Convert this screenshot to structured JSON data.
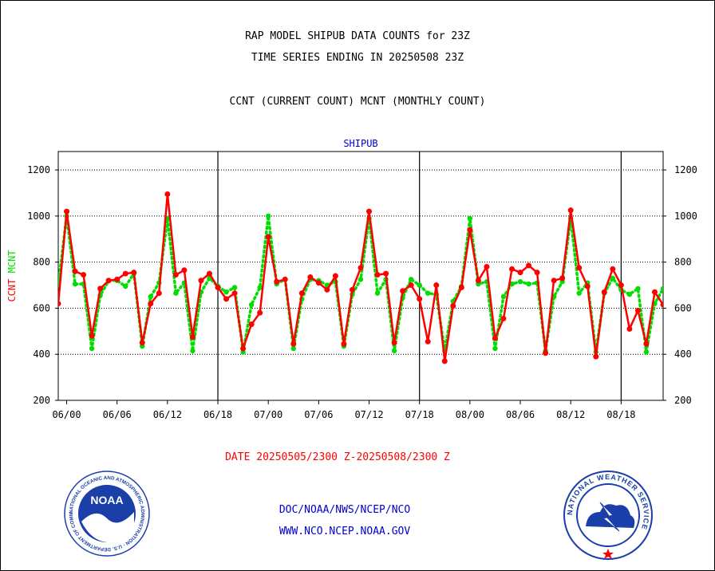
{
  "header": {
    "title_line1": "RAP MODEL SHIPUB DATA COUNTS for 23Z",
    "title_line2": "TIME SERIES ENDING IN 20250508 23Z",
    "subtitle": "CCNT (CURRENT COUNT) MCNT (MONTHLY COUNT)"
  },
  "footer": {
    "date_range": "DATE 20250505/2300 Z-20250508/2300 Z",
    "link1": "DOC/NOAA/NWS/NCEP/NCO",
    "link2": "WWW.NCO.NCEP.NOAA.GOV"
  },
  "logos": {
    "noaa_text": "NOAA",
    "noaa_ring": "NATIONAL OCEANIC AND ATMOSPHERIC ADMINISTRATION · U.S. DEPARTMENT OF COMMERCE",
    "nws_ring": "NATIONAL WEATHER SERVICE"
  },
  "colors": {
    "ccnt": "#ff0000",
    "mcnt": "#00dd00",
    "plot_title": "#0000cc",
    "date_text": "#ff0000",
    "link_text": "#0000cc"
  },
  "chart_data": {
    "type": "line",
    "title": "SHIPUB",
    "ylabel_parts": [
      {
        "text": "CCNT",
        "color": "#ff0000"
      },
      {
        "text": "MCNT",
        "color": "#00dd00"
      }
    ],
    "ylim": [
      200,
      1280
    ],
    "yticks": [
      200,
      400,
      600,
      800,
      1000,
      1200
    ],
    "grid_y": [
      400,
      600,
      800,
      1000,
      1200
    ],
    "xlim": [
      -1,
      71
    ],
    "xtick_positions": [
      0,
      6,
      12,
      18,
      24,
      30,
      36,
      42,
      48,
      54,
      60,
      66
    ],
    "xtick_labels": [
      "06/00",
      "06/06",
      "06/12",
      "06/18",
      "07/00",
      "07/06",
      "07/12",
      "07/18",
      "08/00",
      "08/06",
      "08/12",
      "08/18"
    ],
    "day_boundaries": [
      18,
      42,
      66
    ],
    "series": [
      {
        "name": "CCNT",
        "color": "#ff0000",
        "x": [
          -1,
          0,
          1,
          2,
          3,
          4,
          5,
          6,
          7,
          8,
          9,
          10,
          11,
          12,
          13,
          14,
          15,
          16,
          17,
          18,
          19,
          20,
          21,
          22,
          23,
          24,
          25,
          26,
          27,
          28,
          29,
          30,
          31,
          32,
          33,
          34,
          35,
          36,
          37,
          38,
          39,
          40,
          41,
          42,
          43,
          44,
          45,
          46,
          47,
          48,
          49,
          50,
          51,
          52,
          53,
          54,
          55,
          56,
          57,
          58,
          59,
          60,
          61,
          62,
          63,
          64,
          65,
          66,
          67,
          68,
          69,
          70,
          71
        ],
        "values": [
          620,
          1020,
          760,
          745,
          480,
          685,
          720,
          725,
          750,
          755,
          450,
          620,
          665,
          1095,
          745,
          765,
          475,
          720,
          750,
          690,
          640,
          665,
          425,
          530,
          580,
          910,
          715,
          725,
          445,
          665,
          735,
          710,
          680,
          740,
          445,
          680,
          775,
          1020,
          745,
          750,
          450,
          675,
          700,
          640,
          455,
          700,
          370,
          610,
          690,
          940,
          720,
          780,
          470,
          555,
          770,
          755,
          785,
          755,
          405,
          720,
          730,
          1025,
          775,
          695,
          390,
          670,
          770,
          700,
          510,
          590,
          445,
          670,
          615
        ]
      },
      {
        "name": "MCNT",
        "color": "#00dd00",
        "x": [
          -1,
          0,
          1,
          2,
          3,
          4,
          5,
          6,
          7,
          8,
          9,
          10,
          11,
          12,
          13,
          14,
          15,
          16,
          17,
          18,
          19,
          20,
          21,
          22,
          23,
          24,
          25,
          26,
          27,
          28,
          29,
          30,
          31,
          32,
          33,
          34,
          35,
          36,
          37,
          38,
          39,
          40,
          41,
          42,
          43,
          44,
          45,
          46,
          47,
          48,
          49,
          50,
          51,
          52,
          53,
          54,
          55,
          56,
          57,
          58,
          59,
          60,
          61,
          62,
          63,
          64,
          65,
          66,
          67,
          68,
          69,
          70,
          71
        ],
        "values": [
          700,
          1000,
          705,
          705,
          425,
          655,
          720,
          720,
          695,
          750,
          435,
          650,
          710,
          990,
          665,
          710,
          415,
          670,
          730,
          695,
          670,
          690,
          410,
          615,
          690,
          1000,
          705,
          725,
          425,
          640,
          725,
          720,
          700,
          715,
          435,
          660,
          725,
          990,
          665,
          725,
          415,
          645,
          725,
          700,
          665,
          660,
          415,
          630,
          695,
          990,
          705,
          715,
          425,
          650,
          705,
          715,
          705,
          710,
          415,
          650,
          715,
          990,
          665,
          710,
          410,
          665,
          730,
          680,
          660,
          685,
          410,
          620,
          685
        ]
      }
    ],
    "grid": true,
    "legend": "none"
  }
}
